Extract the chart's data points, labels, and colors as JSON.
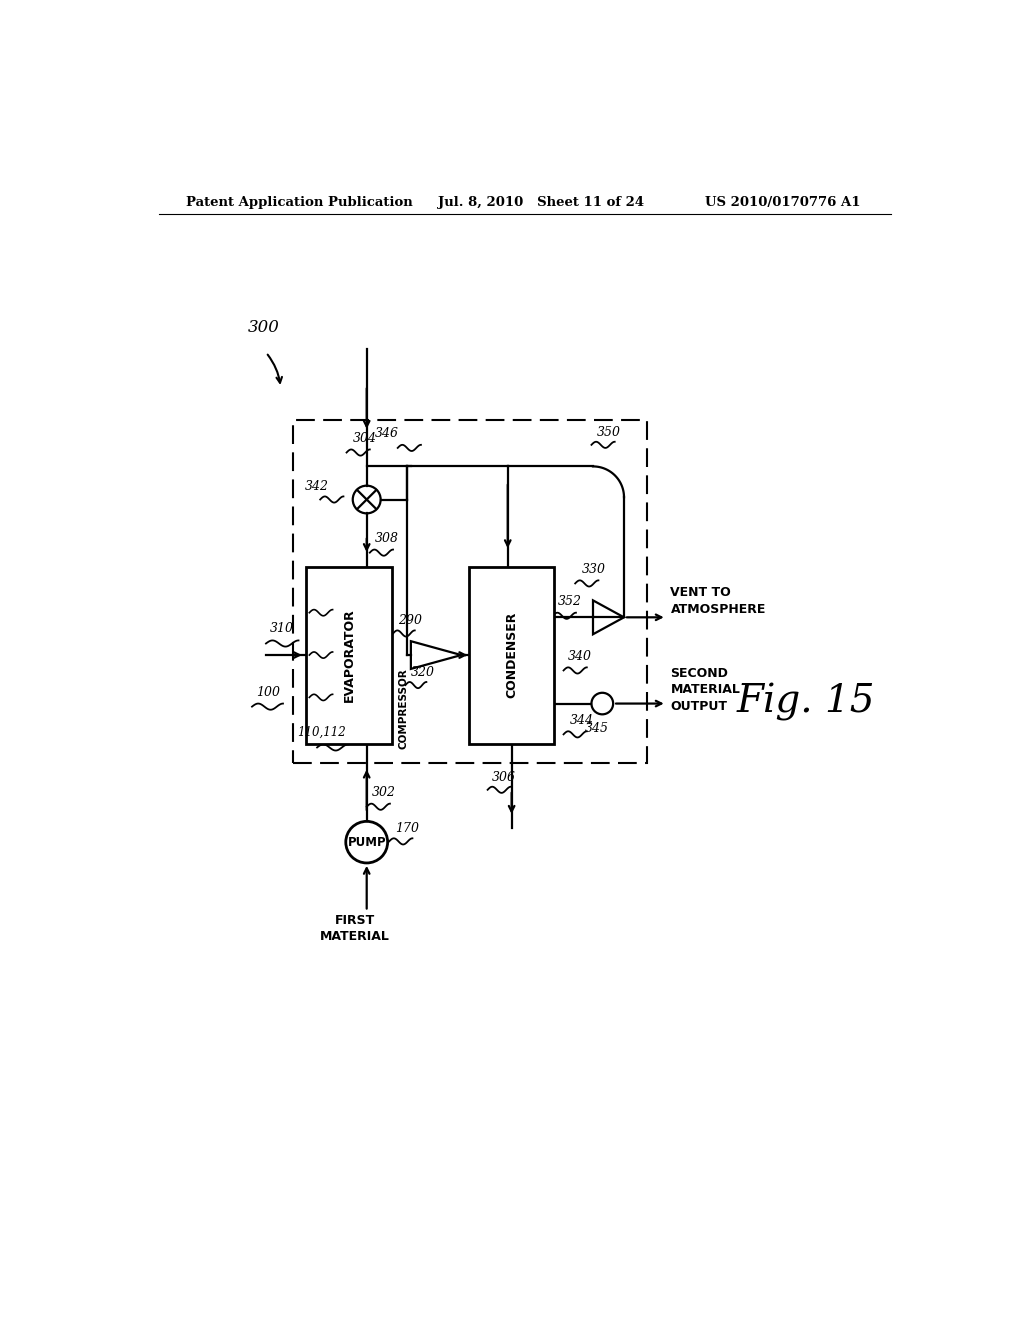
{
  "bg_color": "#ffffff",
  "lc": "#000000",
  "header_left": "Patent Application Publication",
  "header_mid": "Jul. 8, 2010   Sheet 11 of 24",
  "header_right": "US 2010/0170776 A1",
  "fig_label": "Fig. 15",
  "note_300": "300",
  "note_100": "100",
  "note_110_112": "110,112",
  "note_170": "170",
  "note_290": "290",
  "note_302": "302",
  "note_304": "304",
  "note_306": "306",
  "note_308": "308",
  "note_310": "310",
  "note_320": "320",
  "note_330": "330",
  "note_340": "340",
  "note_342": "342",
  "note_344": "344",
  "note_345": "345",
  "note_346": "346",
  "note_350": "350",
  "note_352": "352",
  "lbl_evaporator": "EVAPORATOR",
  "lbl_compressor": "COMPRESSOR",
  "lbl_condenser": "CONDENSER",
  "lbl_pump": "PUMP",
  "lbl_first_material": "FIRST\nMATERIAL",
  "lbl_vent": "VENT TO\nATMOSPHERE",
  "lbl_second": "SECOND\nMATERIAL\nOUTPUT"
}
